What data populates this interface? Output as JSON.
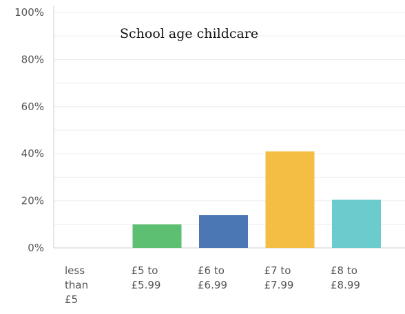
{
  "chart_data": {
    "type": "bar",
    "title": "School age childcare",
    "xlabel": "",
    "ylabel": "",
    "ylim": [
      0,
      100
    ],
    "yticks": [
      "0%",
      "20%",
      "40%",
      "60%",
      "80%",
      "100%"
    ],
    "categories": [
      [
        "less",
        "than",
        "£5"
      ],
      [
        "£5 to",
        "£5.99"
      ],
      [
        "£6 to",
        "£6.99"
      ],
      [
        "£7 to",
        "£7.99"
      ],
      [
        "£8 to",
        "£8.99"
      ]
    ],
    "values": [
      0,
      10,
      14,
      41,
      20.5
    ],
    "colors": [
      "#6cc2c9",
      "#5cbf71",
      "#4b78b4",
      "#f4bd44",
      "#6bcbcd"
    ],
    "grid": true,
    "legend": "none"
  }
}
